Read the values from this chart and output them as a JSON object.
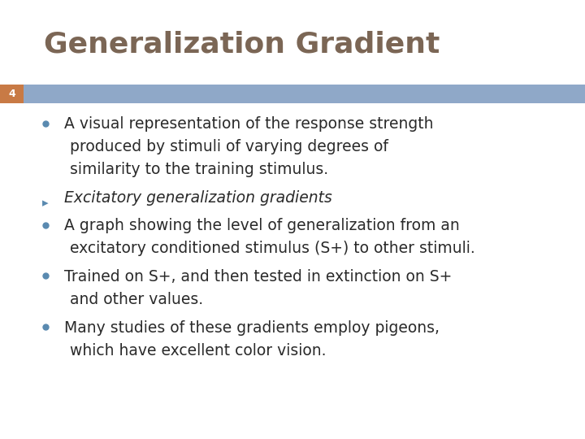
{
  "title": "Generalization Gradient",
  "title_color": "#7B6655",
  "slide_number": "4",
  "slide_number_color": "#FFFFFF",
  "header_bar_color": "#8FA8C8",
  "slide_number_bg": "#C87A45",
  "background_color": "#FFFFFF",
  "bullet_color": "#2A2A2A",
  "bullet_dot_color": "#5A8AB0",
  "arrow_color": "#5A8AB0",
  "title_fontsize": 26,
  "body_fontsize": 13.5,
  "bullet_points": [
    {
      "type": "bullet",
      "lines": [
        "A visual representation of the response strength",
        "produced by stimuli of varying degrees of",
        "similarity to the training stimulus."
      ]
    },
    {
      "type": "arrow",
      "lines": [
        "Excitatory generalization gradients"
      ]
    },
    {
      "type": "bullet",
      "lines": [
        "A graph showing the level of generalization from an",
        "excitatory conditioned stimulus (S+) to other stimuli."
      ]
    },
    {
      "type": "bullet",
      "lines": [
        "Trained on S+, and then tested in extinction on S+",
        "and other values."
      ]
    },
    {
      "type": "bullet",
      "lines": [
        "Many studies of these gradients employ pigeons,",
        "which have excellent color vision."
      ]
    }
  ]
}
